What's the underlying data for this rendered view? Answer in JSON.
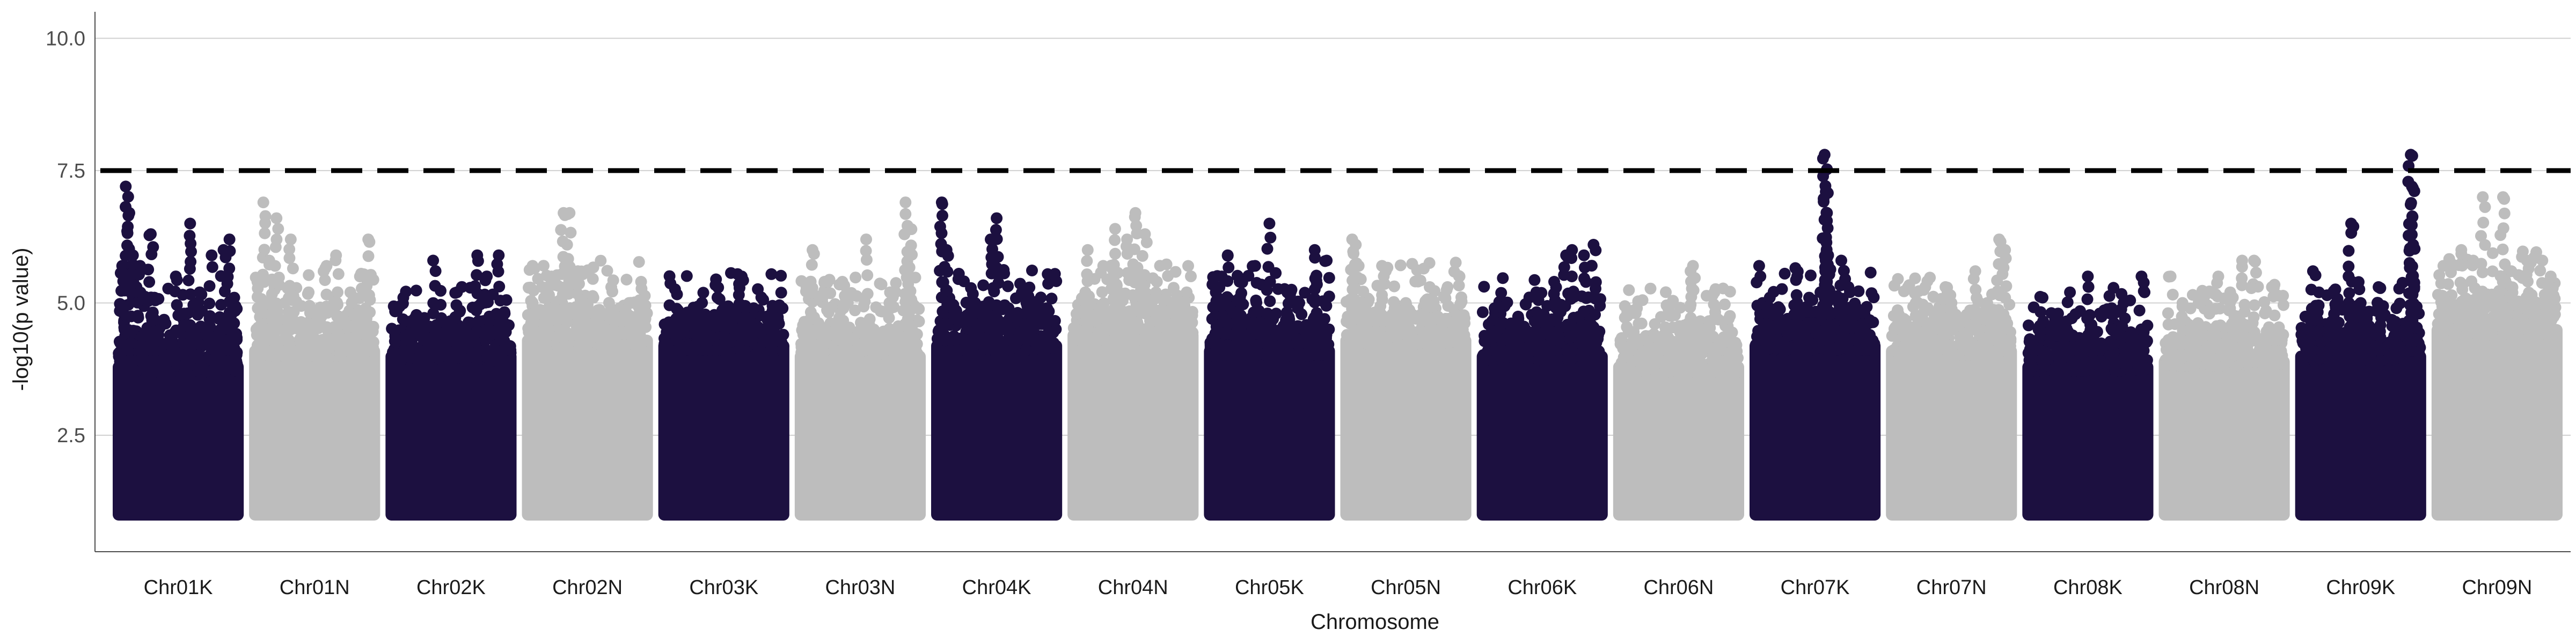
{
  "chart_data": {
    "type": "scatter",
    "subtype": "manhattan",
    "title": "",
    "xlabel": "Chromosome",
    "ylabel": "-log10(p value)",
    "ylim": [
      0.3,
      10.5
    ],
    "yticks": [
      2.5,
      5.0,
      7.5,
      10.0
    ],
    "ytick_labels": [
      "2.5",
      "5.0",
      "7.5",
      "10.0"
    ],
    "grid": "horizontal major lines on",
    "legend": "none",
    "significance_threshold": 7.5,
    "threshold_style": "dashed black line",
    "colors": {
      "dark": "#1c1040",
      "light": "#bdbdbd",
      "threshold": "#000000",
      "grid": "#d0d0d0",
      "axis": "#4d4d4d"
    },
    "baseline_min": 1.0,
    "chromosomes": [
      {
        "name": "Chr01K",
        "color": "dark",
        "dense_top": 3.9,
        "peaks": [
          [
            0.15,
            5.3
          ],
          [
            0.03,
            5.7
          ],
          [
            0.06,
            7.2
          ],
          [
            0.09,
            6.7
          ],
          [
            0.12,
            5.9
          ],
          [
            0.18,
            5.7
          ],
          [
            0.27,
            6.3
          ],
          [
            0.3,
            5.1
          ],
          [
            0.48,
            5.5
          ],
          [
            0.55,
            4.8
          ],
          [
            0.6,
            6.5
          ],
          [
            0.68,
            5.2
          ],
          [
            0.78,
            5.9
          ],
          [
            0.84,
            4.7
          ],
          [
            0.88,
            6.0
          ],
          [
            0.93,
            6.2
          ],
          [
            0.97,
            5.1
          ]
        ]
      },
      {
        "name": "Chr01N",
        "color": "light",
        "dense_top": 4.2,
        "peaks": [
          [
            0.02,
            5.4
          ],
          [
            0.07,
            6.9
          ],
          [
            0.12,
            5.8
          ],
          [
            0.18,
            6.6
          ],
          [
            0.25,
            5.0
          ],
          [
            0.3,
            6.2
          ],
          [
            0.45,
            5.2
          ],
          [
            0.6,
            5.7
          ],
          [
            0.68,
            5.9
          ],
          [
            0.8,
            5.2
          ],
          [
            0.88,
            5.5
          ],
          [
            0.95,
            6.2
          ]
        ]
      },
      {
        "name": "Chr02K",
        "color": "dark",
        "dense_top": 4.1,
        "peaks": [
          [
            0.1,
            5.1
          ],
          [
            0.25,
            4.6
          ],
          [
            0.35,
            5.8
          ],
          [
            0.55,
            5.2
          ],
          [
            0.72,
            5.9
          ],
          [
            0.8,
            5.5
          ],
          [
            0.9,
            5.9
          ],
          [
            0.95,
            4.8
          ]
        ]
      },
      {
        "name": "Chr02N",
        "color": "light",
        "dense_top": 4.4,
        "peaks": [
          [
            0.04,
            5.7
          ],
          [
            0.12,
            5.3
          ],
          [
            0.2,
            5.5
          ],
          [
            0.3,
            6.7
          ],
          [
            0.35,
            6.7
          ],
          [
            0.42,
            5.6
          ],
          [
            0.55,
            5.1
          ],
          [
            0.7,
            5.3
          ],
          [
            0.85,
            5.0
          ],
          [
            0.95,
            5.4
          ]
        ]
      },
      {
        "name": "Chr03K",
        "color": "dark",
        "dense_top": 4.3,
        "peaks": [
          [
            0.1,
            4.7
          ],
          [
            0.3,
            4.8
          ],
          [
            0.5,
            4.9
          ],
          [
            0.65,
            5.5
          ],
          [
            0.75,
            4.9
          ],
          [
            0.9,
            4.8
          ]
        ]
      },
      {
        "name": "Chr03N",
        "color": "light",
        "dense_top": 4.1,
        "peaks": [
          [
            0.08,
            5.3
          ],
          [
            0.1,
            6.0
          ],
          [
            0.2,
            5.4
          ],
          [
            0.35,
            5.4
          ],
          [
            0.55,
            6.2
          ],
          [
            0.75,
            5.2
          ],
          [
            0.88,
            6.9
          ],
          [
            0.92,
            6.4
          ]
        ]
      },
      {
        "name": "Chr04K",
        "color": "dark",
        "dense_top": 4.3,
        "peaks": [
          [
            0.04,
            6.9
          ],
          [
            0.08,
            6.0
          ],
          [
            0.15,
            4.7
          ],
          [
            0.32,
            5.0
          ],
          [
            0.45,
            6.2
          ],
          [
            0.5,
            6.6
          ],
          [
            0.6,
            4.9
          ],
          [
            0.75,
            5.0
          ],
          [
            0.92,
            4.9
          ]
        ]
      },
      {
        "name": "Chr04N",
        "color": "light",
        "dense_top": 4.5,
        "peaks": [
          [
            0.1,
            5.2
          ],
          [
            0.12,
            6.0
          ],
          [
            0.25,
            5.7
          ],
          [
            0.35,
            6.4
          ],
          [
            0.45,
            6.2
          ],
          [
            0.52,
            6.7
          ],
          [
            0.6,
            6.3
          ],
          [
            0.7,
            5.4
          ],
          [
            0.85,
            5.0
          ],
          [
            0.95,
            5.2
          ]
        ]
      },
      {
        "name": "Chr05K",
        "color": "dark",
        "dense_top": 4.2,
        "peaks": [
          [
            0.05,
            5.2
          ],
          [
            0.1,
            5.5
          ],
          [
            0.15,
            5.9
          ],
          [
            0.25,
            5.4
          ],
          [
            0.38,
            5.7
          ],
          [
            0.5,
            6.5
          ],
          [
            0.65,
            5.2
          ],
          [
            0.75,
            5.0
          ],
          [
            0.88,
            6.0
          ],
          [
            0.98,
            5.8
          ]
        ]
      },
      {
        "name": "Chr05N",
        "color": "light",
        "dense_top": 4.4,
        "peaks": [
          [
            0.05,
            6.2
          ],
          [
            0.08,
            6.1
          ],
          [
            0.3,
            5.7
          ],
          [
            0.5,
            5.0
          ],
          [
            0.7,
            5.3
          ],
          [
            0.85,
            5.3
          ],
          [
            0.95,
            5.5
          ]
        ]
      },
      {
        "name": "Chr06K",
        "color": "dark",
        "dense_top": 4.1,
        "peaks": [
          [
            0.1,
            4.9
          ],
          [
            0.3,
            4.7
          ],
          [
            0.45,
            5.2
          ],
          [
            0.6,
            5.4
          ],
          [
            0.7,
            5.9
          ],
          [
            0.75,
            6.0
          ],
          [
            0.85,
            5.9
          ],
          [
            0.93,
            6.1
          ]
        ]
      },
      {
        "name": "Chr06N",
        "color": "light",
        "dense_top": 3.9,
        "peaks": [
          [
            0.15,
            4.9
          ],
          [
            0.3,
            4.6
          ],
          [
            0.45,
            5.0
          ],
          [
            0.6,
            5.6
          ],
          [
            0.62,
            5.7
          ],
          [
            0.8,
            5.2
          ],
          [
            0.92,
            4.7
          ]
        ]
      },
      {
        "name": "Chr07K",
        "color": "dark",
        "dense_top": 4.3,
        "peaks": [
          [
            0.06,
            5.0
          ],
          [
            0.12,
            5.1
          ],
          [
            0.2,
            4.9
          ],
          [
            0.35,
            5.5
          ],
          [
            0.45,
            5.1
          ],
          [
            0.58,
            7.8
          ],
          [
            0.59,
            7.1
          ],
          [
            0.6,
            6.7
          ],
          [
            0.61,
            5.9
          ],
          [
            0.6,
            5.4
          ],
          [
            0.72,
            5.8
          ],
          [
            0.78,
            5.3
          ],
          [
            0.85,
            4.9
          ]
        ]
      },
      {
        "name": "Chr07N",
        "color": "light",
        "dense_top": 4.2,
        "peaks": [
          [
            0.1,
            4.7
          ],
          [
            0.2,
            5.0
          ],
          [
            0.28,
            5.3
          ],
          [
            0.45,
            5.3
          ],
          [
            0.5,
            5.0
          ],
          [
            0.65,
            4.8
          ],
          [
            0.7,
            5.6
          ],
          [
            0.8,
            5.0
          ],
          [
            0.9,
            6.2
          ],
          [
            0.95,
            6.0
          ]
        ]
      },
      {
        "name": "Chr08K",
        "color": "dark",
        "dense_top": 3.9,
        "peaks": [
          [
            0.12,
            5.1
          ],
          [
            0.25,
            4.8
          ],
          [
            0.35,
            5.2
          ],
          [
            0.5,
            5.5
          ],
          [
            0.6,
            4.8
          ],
          [
            0.7,
            4.9
          ],
          [
            0.8,
            5.0
          ],
          [
            0.95,
            5.5
          ]
        ]
      },
      {
        "name": "Chr08N",
        "color": "light",
        "dense_top": 4.0,
        "peaks": [
          [
            0.05,
            5.5
          ],
          [
            0.15,
            5.0
          ],
          [
            0.3,
            5.1
          ],
          [
            0.45,
            5.5
          ],
          [
            0.55,
            5.2
          ],
          [
            0.65,
            5.8
          ],
          [
            0.75,
            5.8
          ],
          [
            0.9,
            5.3
          ]
        ]
      },
      {
        "name": "Chr09K",
        "color": "dark",
        "dense_top": 4.1,
        "peaks": [
          [
            0.1,
            5.6
          ],
          [
            0.15,
            5.2
          ],
          [
            0.3,
            5.0
          ],
          [
            0.42,
            6.5
          ],
          [
            0.5,
            5.0
          ],
          [
            0.65,
            5.3
          ],
          [
            0.8,
            4.9
          ],
          [
            0.92,
            7.8
          ],
          [
            0.93,
            7.2
          ],
          [
            0.94,
            6.1
          ],
          [
            0.95,
            5.3
          ]
        ]
      },
      {
        "name": "Chr09N",
        "color": "light",
        "dense_top": 4.6,
        "peaks": [
          [
            0.05,
            5.7
          ],
          [
            0.2,
            6.0
          ],
          [
            0.3,
            5.8
          ],
          [
            0.38,
            7.0
          ],
          [
            0.55,
            7.0
          ],
          [
            0.62,
            5.6
          ],
          [
            0.75,
            5.8
          ],
          [
            0.88,
            5.8
          ],
          [
            0.95,
            5.5
          ]
        ]
      }
    ]
  }
}
